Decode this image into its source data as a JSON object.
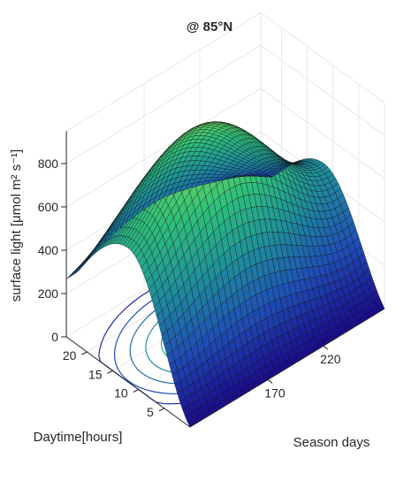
{
  "chart_data": {
    "type": "surface",
    "title": "@ 85°N",
    "xlabel": "Season days",
    "ylabel": "Daytime[hours]",
    "zlabel": "surface light [μmol m² s⁻¹]",
    "xticks": [
      170,
      220
    ],
    "yticks": [
      5,
      10,
      15,
      20
    ],
    "zticks": [
      0,
      200,
      400,
      600,
      800
    ],
    "zlim": [
      0,
      950
    ],
    "surface": {
      "x": [
        100,
        275
      ],
      "y": [
        0,
        24
      ],
      "peak": {
        "season_day": 172,
        "daytime_hours": 12,
        "value": 930
      },
      "edge_values": {
        "daytime_0": 0,
        "daytime_24": 190,
        "season_day_100": 200,
        "season_day_275": 250
      },
      "colormap": [
        "#1a0b8c",
        "#1f4fb5",
        "#1f8f9a",
        "#2fc07a",
        "#7ddc55"
      ]
    },
    "contour_projection": "floor",
    "grid": true
  }
}
